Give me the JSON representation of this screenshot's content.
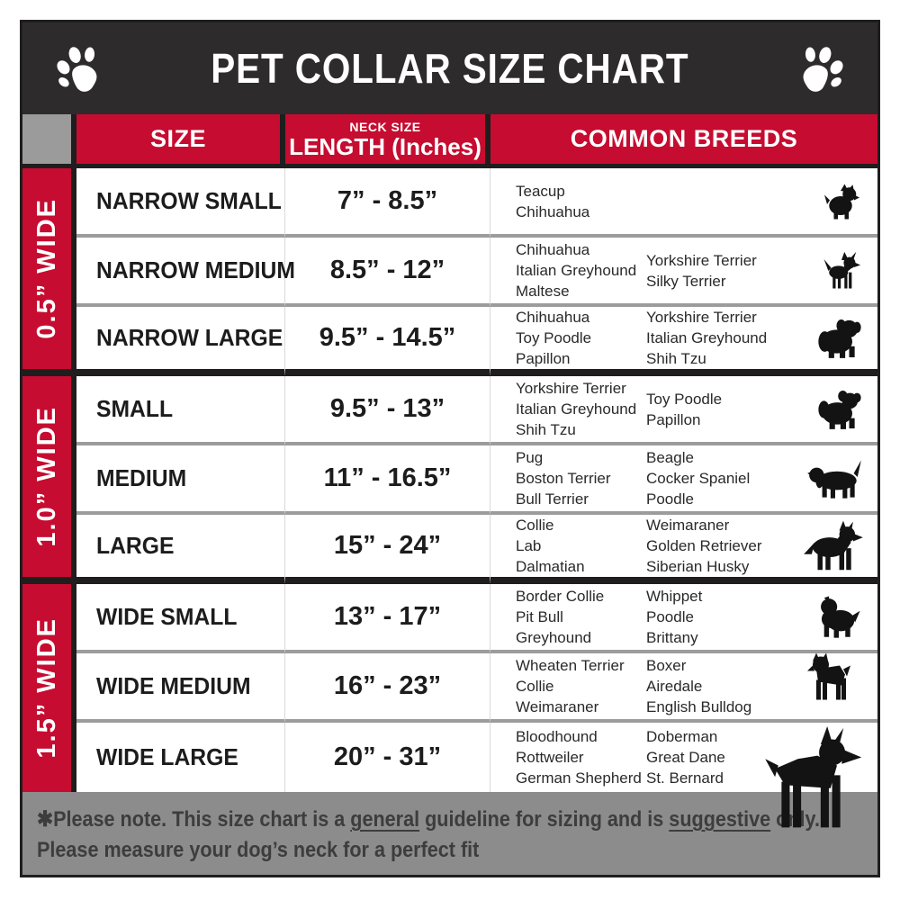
{
  "masthead": {
    "title": "PET COLLAR SIZE CHART",
    "left_icon": "paw-icon",
    "right_icon": "paw-icon"
  },
  "colors": {
    "masthead_bg": "#2d2b2c",
    "accent_red": "#c60c30",
    "corner_gray": "#9b9b9b",
    "footer_gray": "#8c8c8c",
    "row_divider_gray": "#9c9c9c",
    "border_black": "#1f1d1e"
  },
  "table": {
    "headers": {
      "size": "SIZE",
      "neck_small": "NECK SIZE",
      "neck_big": "LENGTH (Inches)",
      "breeds": "COMMON BREEDS"
    },
    "groups": [
      {
        "width_label": "0.5” WIDE",
        "rows": [
          {
            "size": "NARROW SMALL",
            "length": "7” - 8.5”",
            "breeds_col1": [
              "Teacup",
              "Chihuahua"
            ],
            "breeds_col2": [],
            "icon": "yorkshire-terrier-icon"
          },
          {
            "size": "NARROW MEDIUM",
            "length": "8.5” - 12”",
            "breeds_col1": [
              "Chihuahua",
              "Italian Greyhound",
              "Maltese"
            ],
            "breeds_col2": [
              "Yorkshire Terrier",
              "Silky Terrier"
            ],
            "icon": "chihuahua-icon"
          },
          {
            "size": "NARROW LARGE",
            "length": "9.5” - 14.5”",
            "breeds_col1": [
              "Chihuahua",
              "Toy Poodle",
              "Papillon"
            ],
            "breeds_col2": [
              "Yorkshire Terrier",
              "Italian Greyhound",
              "Shih Tzu"
            ],
            "icon": "pekingese-icon"
          }
        ]
      },
      {
        "width_label": "1.0” WIDE",
        "rows": [
          {
            "size": "SMALL",
            "length": "9.5” - 13”",
            "breeds_col1": [
              "Yorkshire Terrier",
              "Italian Greyhound",
              "Shih Tzu"
            ],
            "breeds_col2": [
              "Toy Poodle",
              "Papillon"
            ],
            "icon": "shih-tzu-icon"
          },
          {
            "size": "MEDIUM",
            "length": "11” - 16.5”",
            "breeds_col1": [
              "Pug",
              "Boston Terrier",
              "Bull Terrier"
            ],
            "breeds_col2": [
              "Beagle",
              "Cocker Spaniel",
              "Poodle"
            ],
            "icon": "beagle-icon"
          },
          {
            "size": "LARGE",
            "length": "15” - 24”",
            "breeds_col1": [
              "Collie",
              "Lab",
              "Dalmatian"
            ],
            "breeds_col2": [
              "Weimaraner",
              "Golden Retriever",
              "Siberian Husky"
            ],
            "icon": "shepherd-icon"
          }
        ]
      },
      {
        "width_label": "1.5” WIDE",
        "rows": [
          {
            "size": "WIDE SMALL",
            "length": "13” - 17”",
            "breeds_col1": [
              "Border Collie",
              "Pit Bull",
              "Greyhound"
            ],
            "breeds_col2": [
              "Whippet",
              "Poodle",
              "Brittany"
            ],
            "icon": "pit-bull-icon"
          },
          {
            "size": "WIDE MEDIUM",
            "length": "16” - 23”",
            "breeds_col1": [
              "Wheaten Terrier",
              "Collie",
              "Weimaraner"
            ],
            "breeds_col2": [
              "Boxer",
              "Airedale",
              "English Bulldog"
            ],
            "icon": "boxer-icon"
          },
          {
            "size": "WIDE LARGE",
            "length": "20” - 31”",
            "breeds_col1": [
              "Bloodhound",
              "Rottweiler",
              "German Shepherd"
            ],
            "breeds_col2": [
              "Doberman",
              "Great Dane",
              "St. Bernard"
            ],
            "icon": "doberman-icon"
          }
        ]
      }
    ]
  },
  "footer": {
    "p1": "✱Please note. This size chart is a ",
    "u1": "general",
    "p2": " guideline for sizing and is ",
    "u2": "suggestive",
    "p3": " only.",
    "line2": "Please measure your dog’s neck for a perfect fit"
  }
}
